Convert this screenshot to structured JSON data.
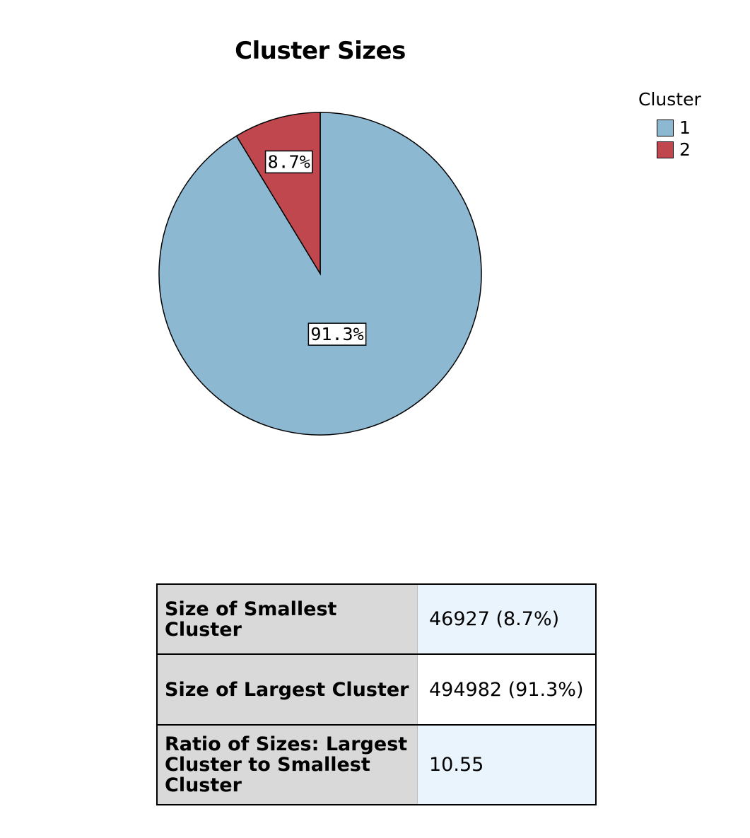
{
  "chart_data": {
    "type": "pie",
    "title": "Cluster Sizes",
    "legend_title": "Cluster",
    "legend_position": "top-right",
    "slices": [
      {
        "label": "1",
        "value": 91.3,
        "percent_label": "91.3%",
        "color": "#8db8d1"
      },
      {
        "label": "2",
        "value": 8.7,
        "percent_label": "8.7%",
        "color": "#c0474e"
      }
    ]
  },
  "table": {
    "rows": [
      {
        "header": "Size of Smallest Cluster",
        "value": "46927 (8.7%)"
      },
      {
        "header": "Size of Largest Cluster",
        "value": "494982 (91.3%)"
      },
      {
        "header": "Ratio of Sizes: Largest Cluster to Smallest Cluster",
        "value": "10.55"
      }
    ]
  }
}
